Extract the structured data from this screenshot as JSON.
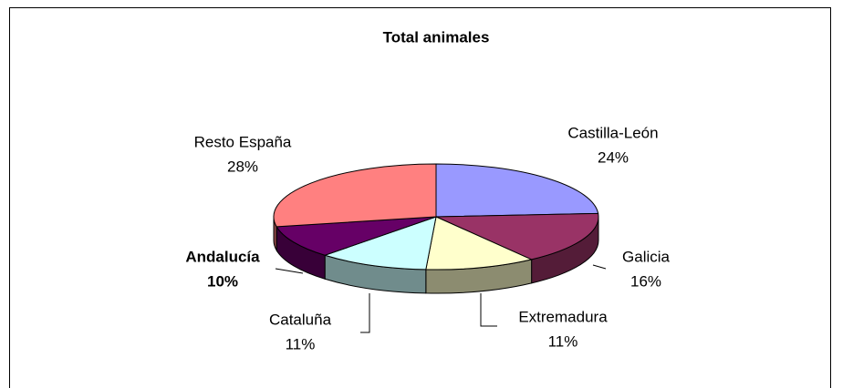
{
  "chart_data": {
    "type": "pie",
    "title": "Total animales",
    "categories": [
      "Castilla-León",
      "Galicia",
      "Extremadura",
      "Cataluña",
      "Andalucía",
      "Resto España"
    ],
    "values": [
      24,
      16,
      11,
      11,
      10,
      28
    ],
    "value_labels": [
      "24%",
      "16%",
      "11%",
      "11%",
      "10%",
      "28%"
    ],
    "colors": [
      "#9999ff",
      "#993366",
      "#ffffcc",
      "#ccffff",
      "#660066",
      "#ff8080"
    ]
  }
}
